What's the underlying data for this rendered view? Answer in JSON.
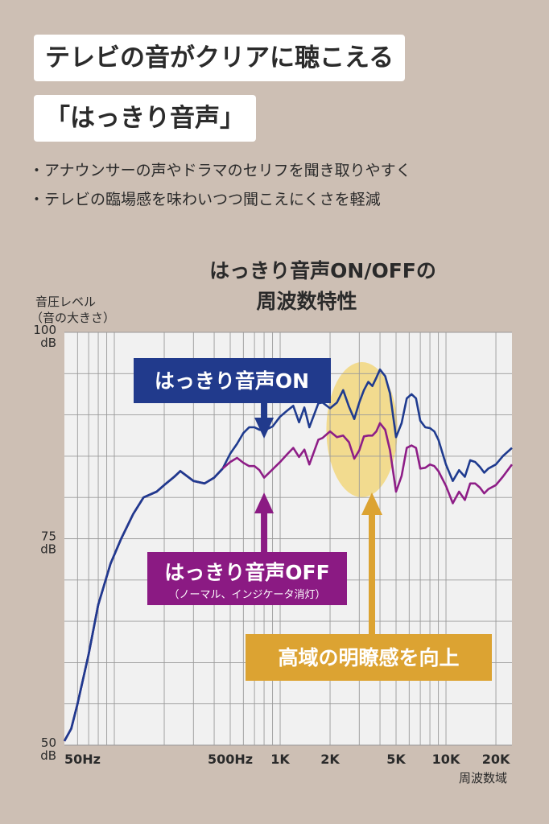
{
  "header": {
    "title_line1": "テレビの音がクリアに聴こえる",
    "title_line2": "「はっきり音声」"
  },
  "bullets": [
    "・アナウンサーの声やドラマのセリフを聞き取りやすく",
    "・テレビの臨場感を味わいつつ聞こえにくさを軽減"
  ],
  "chart_data": {
    "type": "line",
    "title_line1": "はっきり音声ON/OFFの",
    "title_line2": "周波数特性",
    "ylabel_line1": "音圧レベル",
    "ylabel_line2": "（音の大きさ）",
    "xlabel": "周波数域",
    "xscale": "log",
    "xlim": [
      50,
      25000
    ],
    "ylim": [
      50,
      100
    ],
    "y_ticks": [
      {
        "value": 100,
        "label": "100",
        "unit": "dB"
      },
      {
        "value": 75,
        "label": "75",
        "unit": "dB"
      },
      {
        "value": 50,
        "label": "50",
        "unit": "dB"
      }
    ],
    "x_ticks": [
      {
        "value": 50,
        "label": "50Hz"
      },
      {
        "value": 500,
        "label": "500Hz"
      },
      {
        "value": 1000,
        "label": "1K"
      },
      {
        "value": 2000,
        "label": "2K"
      },
      {
        "value": 5000,
        "label": "5K"
      },
      {
        "value": 10000,
        "label": "10K"
      },
      {
        "value": 20000,
        "label": "20K"
      }
    ],
    "grid": true,
    "series": [
      {
        "name": "はっきり音声ON",
        "color": "#1f3b8f",
        "x": [
          50,
          55,
          60,
          70,
          80,
          95,
          110,
          130,
          150,
          180,
          200,
          230,
          250,
          300,
          350,
          400,
          450,
          500,
          550,
          600,
          650,
          700,
          750,
          800,
          900,
          1000,
          1100,
          1200,
          1300,
          1400,
          1500,
          1700,
          1800,
          2000,
          2200,
          2400,
          2600,
          2800,
          3000,
          3200,
          3400,
          3600,
          3800,
          4000,
          4300,
          4600,
          5000,
          5400,
          5800,
          6200,
          6600,
          7000,
          7500,
          8000,
          8500,
          9000,
          10000,
          11000,
          12000,
          13000,
          14000,
          15000,
          16000,
          17000,
          18000,
          20000,
          22000,
          25000
        ],
        "y": [
          50.5,
          52,
          55,
          61,
          67,
          72,
          75,
          78,
          80,
          80.7,
          81.5,
          82.5,
          83.2,
          82,
          81.7,
          82.4,
          83.5,
          85.3,
          86.5,
          87.8,
          88.5,
          88.5,
          88.2,
          88.1,
          88.6,
          89.8,
          90.5,
          91.1,
          89.1,
          90.9,
          88.5,
          91.4,
          91.5,
          90.8,
          91.5,
          93,
          91,
          89.5,
          91.5,
          93,
          94,
          93.5,
          94.5,
          95.5,
          94.7,
          92.6,
          87.3,
          89,
          92,
          92.5,
          92,
          89.3,
          88.5,
          88.4,
          88,
          87,
          84,
          82,
          83.3,
          82.5,
          84.5,
          84.3,
          83.7,
          83,
          83.5,
          84,
          85,
          86
        ]
      },
      {
        "name": "はっきり音声OFF",
        "color": "#8e1e87",
        "x": [
          50,
          55,
          60,
          70,
          80,
          95,
          110,
          130,
          150,
          180,
          200,
          230,
          250,
          300,
          350,
          400,
          450,
          500,
          550,
          600,
          650,
          700,
          750,
          800,
          900,
          1000,
          1100,
          1200,
          1300,
          1400,
          1500,
          1700,
          1800,
          2000,
          2200,
          2400,
          2600,
          2800,
          3000,
          3200,
          3400,
          3600,
          3800,
          4000,
          4300,
          4600,
          5000,
          5400,
          5800,
          6200,
          6600,
          7000,
          7500,
          8000,
          8500,
          9000,
          10000,
          11000,
          12000,
          13000,
          14000,
          15000,
          16000,
          17000,
          18000,
          20000,
          22000,
          25000
        ],
        "y": [
          50.5,
          52,
          55,
          61,
          67,
          72,
          75,
          78,
          80,
          80.7,
          81.5,
          82.5,
          83.2,
          82,
          81.7,
          82.4,
          83.5,
          84.3,
          84.8,
          84.2,
          83.8,
          83.8,
          83.3,
          82.4,
          83.4,
          84.3,
          85.2,
          86,
          84.9,
          85.8,
          84,
          87,
          87.2,
          88,
          87.3,
          87.5,
          86.7,
          84.7,
          85.7,
          87.4,
          87.5,
          87.5,
          88,
          89,
          88.2,
          85.7,
          80.7,
          82.6,
          86,
          86.3,
          86,
          83.5,
          83.6,
          84,
          83.8,
          83.2,
          81.4,
          79.3,
          80.7,
          79.7,
          81.7,
          81.7,
          81.2,
          80.5,
          81,
          81.5,
          82.5,
          84
        ]
      }
    ],
    "annotations": [
      {
        "name": "on-label",
        "text": "はっきり音声ON",
        "color": "#213a8c",
        "points_to_x": 800
      },
      {
        "name": "off-label",
        "text": "はっきり音声OFF",
        "subtext": "（ノーマル、インジケータ消灯）",
        "color": "#8b1a83",
        "points_to_x": 800
      },
      {
        "name": "highlight-label",
        "text": "高域の明瞭感を向上",
        "color": "#dca332",
        "highlight_x_range": [
          1900,
          5100
        ],
        "highlight_color": "#f2d77e"
      }
    ],
    "colors": {
      "background": "#cdbfb4",
      "plot_background": "#f1f1f1",
      "grid": "#9a9a9a"
    }
  }
}
